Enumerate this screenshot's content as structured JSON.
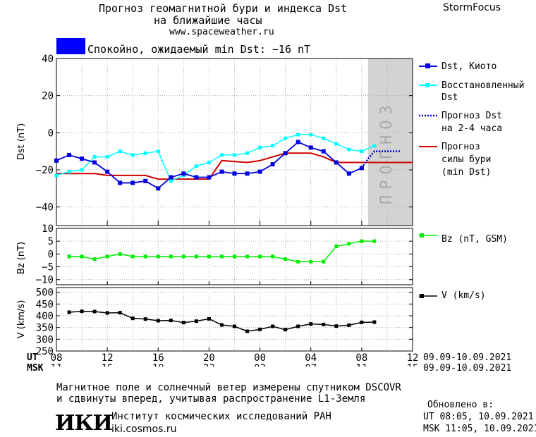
{
  "header": {
    "title_line1": "Прогноз геомагнитной бури и индекса Dst",
    "title_line2": "на ближайшие часы",
    "url": "www.spaceweather.ru",
    "brand": "StormFocus"
  },
  "status": {
    "color": "#0000ff",
    "text": "Спокойно, ожидаемый min Dst: −16 nT"
  },
  "panels": {
    "dst": {
      "ylabel": "Dst (nT)",
      "yticks": [
        "40",
        "20",
        "0",
        "−20",
        "−40"
      ],
      "forecast_label": "ПРОГНОЗ"
    },
    "bz": {
      "ylabel": "Bz (nT)",
      "yticks": [
        "10",
        "5",
        "0",
        "−5",
        "−10"
      ]
    },
    "v": {
      "ylabel": "V (km/s)",
      "yticks": [
        "500",
        "450",
        "400",
        "350",
        "300",
        "250"
      ]
    }
  },
  "legend": {
    "dst_kyoto": "Dst, Киото",
    "dst_restored_1": "Восстановленный",
    "dst_restored_2": "Dst",
    "forecast_dst_1": "Прогноз Dst",
    "forecast_dst_2": "на 2-4 часа",
    "forecast_storm_1": "Прогноз",
    "forecast_storm_2": "силы бури",
    "forecast_storm_3": "(min Dst)",
    "bz": "Bz (nT, GSM)",
    "v": "V (km/s)"
  },
  "colors": {
    "dst_kyoto": "#0000e0",
    "dst_restored": "#00ffff",
    "forecast_dst": "#0000c0",
    "forecast_storm": "#d00000",
    "bz": "#00ee00",
    "v": "#000000",
    "forecast_zone": "#d3d3d3"
  },
  "time_axis": {
    "ut_label": "UT",
    "msk_label": "MSK",
    "ut_ticks": [
      "08",
      "12",
      "16",
      "20",
      "00",
      "04",
      "08",
      "12"
    ],
    "msk_ticks": [
      "11",
      "15",
      "19",
      "23",
      "03",
      "07",
      "11",
      "15"
    ],
    "date_range_ut": "09.09-10.09.2021",
    "date_range_msk": "09.09-10.09.2021"
  },
  "footer": {
    "note_line1": "Магнитное поле и солнечный ветер измерены спутником DSCOVR",
    "note_line2": "и сдвинуты вперед, учитывая распространение L1-Земля",
    "logo": "ИКИ",
    "institute": "Институт космических исследований РАН",
    "site": "iki.cosmos.ru",
    "updated_label": "Обновлено в:",
    "updated_ut": "UT   08:05, 10.09.2021",
    "updated_msk": "MSK 11:05, 10.09.2021"
  },
  "chart_data": [
    {
      "type": "line",
      "title": "",
      "ylabel": "Dst (nT)",
      "xlim": [
        0,
        28
      ],
      "ylim": [
        -50,
        40
      ],
      "x_note": "hours since 08 UT, 09.09.2021",
      "forecast_region": [
        24.5,
        28
      ],
      "series": [
        {
          "name": "Dst, Киото",
          "x": [
            0,
            1,
            2,
            3,
            4,
            5,
            6,
            7,
            8,
            9,
            10,
            11,
            12,
            13,
            14,
            15,
            16,
            17,
            18,
            19,
            20,
            21,
            22,
            23,
            24
          ],
          "values": [
            -15,
            -12,
            -14,
            -16,
            -21,
            -27,
            -27,
            -26,
            -30,
            -24,
            -22,
            -24,
            -24,
            -21,
            -22,
            -22,
            -21,
            -17,
            -11,
            -5,
            -8,
            -10,
            -16,
            -22,
            -19
          ]
        },
        {
          "name": "Восстановленный Dst",
          "x": [
            0,
            1,
            2,
            3,
            4,
            5,
            6,
            7,
            8,
            9,
            10,
            11,
            12,
            13,
            14,
            15,
            16,
            17,
            18,
            19,
            20,
            21,
            22,
            23,
            24,
            25
          ],
          "values": [
            -23,
            -21,
            -20,
            -13,
            -13,
            -10,
            -12,
            -11,
            -10,
            -26,
            -23,
            -18,
            -16,
            -12,
            -12,
            -11,
            -8,
            -7,
            -3,
            -1,
            -1,
            -3,
            -6,
            -9,
            -10,
            -7
          ]
        },
        {
          "name": "Прогноз Dst на 2-4 часа",
          "x": [
            24,
            24.5,
            25,
            26,
            27
          ],
          "values": [
            -19,
            -14,
            -10,
            -10,
            -10
          ]
        },
        {
          "name": "Прогноз силы бури (min Dst)",
          "x": [
            0,
            3,
            4,
            7,
            8,
            12,
            13,
            15,
            16,
            17,
            18,
            19,
            20,
            21,
            22,
            23,
            24,
            28
          ],
          "values": [
            -22,
            -22,
            -23,
            -23,
            -25,
            -25,
            -15,
            -16,
            -15,
            -13,
            -11,
            -11,
            -11,
            -13,
            -16,
            -16,
            -16,
            -16
          ]
        }
      ]
    },
    {
      "type": "line",
      "title": "",
      "ylabel": "Bz (nT)",
      "xlim": [
        0,
        28
      ],
      "ylim": [
        -12,
        10
      ],
      "series": [
        {
          "name": "Bz (nT, GSM)",
          "x": [
            1,
            2,
            3,
            4,
            5,
            6,
            7,
            8,
            9,
            10,
            11,
            12,
            13,
            14,
            15,
            16,
            17,
            18,
            19,
            20,
            21,
            22,
            23,
            24,
            25
          ],
          "values": [
            -1,
            -1,
            -2,
            -1,
            0,
            -1,
            -1,
            -1,
            -1,
            -1,
            -1,
            -1,
            -1,
            -1,
            -1,
            -1,
            -1,
            -2,
            -3,
            -3,
            -3,
            3,
            4,
            5,
            5
          ]
        }
      ]
    },
    {
      "type": "line",
      "title": "",
      "ylabel": "V (km/s)",
      "xlim": [
        0,
        28
      ],
      "ylim": [
        250,
        520
      ],
      "series": [
        {
          "name": "V (km/s)",
          "x": [
            1,
            2,
            3,
            4,
            5,
            6,
            7,
            8,
            9,
            10,
            11,
            12,
            13,
            14,
            15,
            16,
            17,
            18,
            19,
            20,
            21,
            22,
            23,
            24,
            25
          ],
          "values": [
            415,
            419,
            418,
            412,
            413,
            389,
            386,
            379,
            380,
            371,
            377,
            387,
            361,
            355,
            334,
            342,
            355,
            341,
            355,
            365,
            363,
            356,
            360,
            372,
            373
          ]
        }
      ]
    }
  ]
}
